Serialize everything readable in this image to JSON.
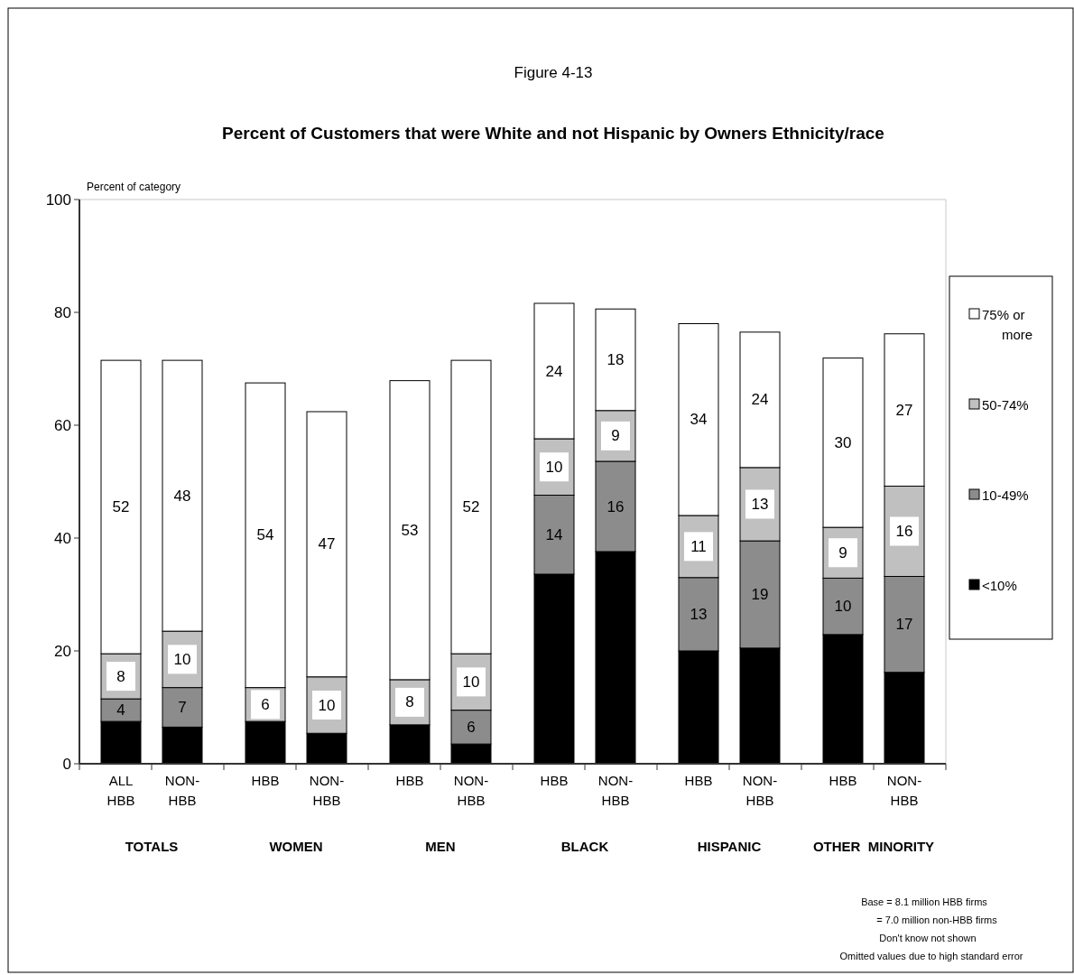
{
  "chart_data": {
    "type": "bar",
    "stacked": true,
    "title": "Percent of Customers that were White and not Hispanic by Owners Ethnicity/race",
    "subtitle": "Figure 4-13",
    "ylabel": "Percent of category",
    "categories": [
      "ALL HBB",
      "NON-HBB",
      "HBB",
      "NON-HBB",
      "HBB",
      "NON-HBB",
      "HBB",
      "NON-HBB",
      "HBB",
      "NON-HBB",
      "HBB",
      "NON-HBB"
    ],
    "series": [
      {
        "name": "<10%",
        "color": "#000000",
        "values": [
          7.5,
          6.5,
          7.5,
          5.4,
          6.9,
          3.5,
          33.6,
          37.6,
          20,
          20.5,
          22.9,
          16.2
        ],
        "value_labels": [
          null,
          null,
          null,
          null,
          null,
          null,
          null,
          null,
          null,
          null,
          null,
          null
        ]
      },
      {
        "name": "10-49%",
        "color": "#8c8c8c",
        "values": [
          4,
          7,
          null,
          null,
          null,
          6,
          14,
          16,
          13,
          19,
          10,
          17
        ],
        "value_labels": [
          "4",
          "7",
          null,
          null,
          null,
          "6",
          "14",
          "16",
          "13",
          "19",
          "10",
          "17"
        ]
      },
      {
        "name": "50-74%",
        "color": "#c0c0c0",
        "values": [
          8,
          10,
          6,
          10,
          8,
          10,
          10,
          9,
          11,
          13,
          9,
          16
        ],
        "value_labels": [
          "8",
          "10",
          "6",
          "10",
          "8",
          "10",
          "10",
          "9",
          "11",
          "13",
          "9",
          "16"
        ]
      },
      {
        "name": "75% or more",
        "color": "#ffffff",
        "values": [
          52,
          48,
          54,
          47,
          53,
          52,
          24,
          18,
          34,
          24,
          30,
          27
        ],
        "value_labels": [
          "52",
          "48",
          "54",
          "47",
          "53",
          "52",
          "24",
          "18",
          "34",
          "24",
          "30",
          "27"
        ]
      }
    ],
    "ylim": [
      0,
      100
    ],
    "yticks": [
      0,
      20,
      40,
      60,
      80,
      100
    ],
    "legend": "right",
    "annotations": [
      "TOTALS",
      "WOMEN",
      "MEN",
      "BLACK",
      "HISPANIC",
      "OTHER  MINORITY",
      "Base = 8.1  million HBB  firms",
      "= 7.0 million non-HBB firms",
      "Don't know not shown",
      "Omitted values due to high standard error"
    ]
  }
}
